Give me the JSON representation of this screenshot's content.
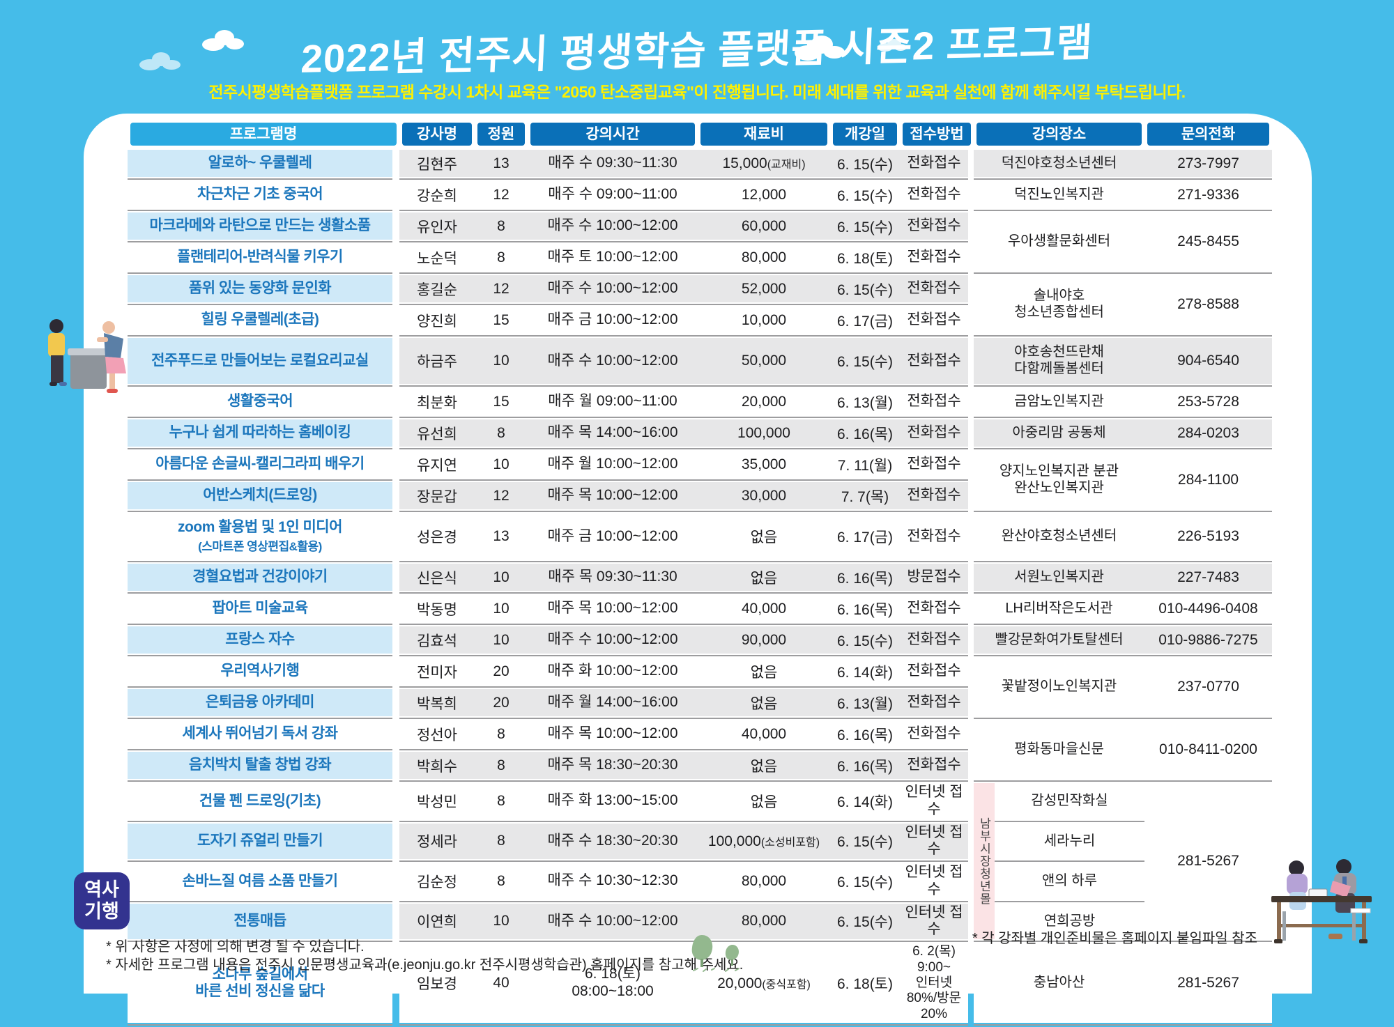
{
  "title": "2022년 전주시 평생학습 플랫폼 시즌2 프로그램",
  "subtitle": "전주시평생학습플랫폼 프로그램 수강시 1차시 교육은 \"2050 탄소중립교육\"이 진행됩니다. 미래 세대를 위한 교육과 실천에 함께 해주시길 부탁드립니다.",
  "badge": {
    "text": "역사\n기행"
  },
  "colors": {
    "background_sky": "#45bce9",
    "panel": "#ffffff",
    "header_blue": "#0a70b8",
    "header_light_blue": "#2aaae1",
    "program_cell_blue": "#cfe9f8",
    "data_cell_gray": "#e7e7e8",
    "program_text_blue": "#1b76bc",
    "market_strip_pink": "#fbe3e5",
    "badge_indigo": "#33338f",
    "subtitle_yellow": "#fff100"
  },
  "footer": {
    "note1": "* 위 사항은 사정에 의해 변경 될 수 있습니다.",
    "note2": "* 자세한 프로그램 내용은 전주시 인문평생교육과(e.jeonju.go.kr 전주시평생학습관) 홈페이지를 참고해 주세요.",
    "note_right": "* 각 강좌별 개인준비물은 홈페이지 붙임파일 참조"
  },
  "table": {
    "headers": [
      "프로그램명",
      "강사명",
      "정원",
      "강의시간",
      "재료비",
      "개강일",
      "접수방법",
      "강의장소",
      "문의전화"
    ],
    "market_label": "남부시장청년몰",
    "rows": [
      {
        "shade": true,
        "name": "알로하~ 우쿨렐레",
        "instructor": "김현주",
        "capacity": "13",
        "time": "매주 수 09:30~11:30",
        "fee": "15,000",
        "fee_note": "(교재비)",
        "date": "6. 15(수)",
        "method": "전화접수",
        "loc": {
          "text": "덕진야호청소년센터",
          "span": 1,
          "cols": true
        },
        "phone": {
          "text": "273-7997",
          "span": 1
        }
      },
      {
        "shade": false,
        "name": "차근차근 기초 중국어",
        "instructor": "강순희",
        "capacity": "12",
        "time": "매주 수 09:00~11:00",
        "fee": "12,000",
        "date": "6. 15(수)",
        "method": "전화접수",
        "loc": {
          "text": "덕진노인복지관",
          "span": 1,
          "cols": true
        },
        "phone": {
          "text": "271-9336",
          "span": 1
        }
      },
      {
        "shade": true,
        "name": "마크라메와 라탄으로 만드는 생활소품",
        "instructor": "유인자",
        "capacity": "8",
        "time": "매주 수 10:00~12:00",
        "fee": "60,000",
        "date": "6. 15(수)",
        "method": "전화접수",
        "loc": {
          "text": "우아생활문화센터",
          "span": 2,
          "cols": true
        },
        "phone": {
          "text": "245-8455",
          "span": 2
        }
      },
      {
        "shade": false,
        "name": "플랜테리어-반려식물 키우기",
        "instructor": "노순덕",
        "capacity": "8",
        "time": "매주 토 10:00~12:00",
        "fee": "80,000",
        "date": "6. 18(토)",
        "method": "전화접수"
      },
      {
        "shade": true,
        "name": "품위 있는 동양화 문인화",
        "instructor": "홍길순",
        "capacity": "12",
        "time": "매주 수 10:00~12:00",
        "fee": "52,000",
        "date": "6. 15(수)",
        "method": "전화접수",
        "loc": {
          "text": "솔내야호\n청소년종합센터",
          "span": 2,
          "cols": true
        },
        "phone": {
          "text": "278-8588",
          "span": 2
        }
      },
      {
        "shade": false,
        "name": "힐링 우쿨렐레(초급)",
        "instructor": "양진희",
        "capacity": "15",
        "time": "매주 금 10:00~12:00",
        "fee": "10,000",
        "date": "6. 17(금)",
        "method": "전화접수"
      },
      {
        "shade": true,
        "cls": "tall",
        "name": "전주푸드로 만들어보는 로컬요리교실",
        "instructor": "하금주",
        "capacity": "10",
        "time": "매주 수 10:00~12:00",
        "fee": "50,000",
        "date": "6. 15(수)",
        "method": "전화접수",
        "loc": {
          "text": "야호송천뜨란채\n다함께돌봄센터",
          "span": 1,
          "cols": true
        },
        "phone": {
          "text": "904-6540",
          "span": 1
        }
      },
      {
        "shade": false,
        "name": "생활중국어",
        "instructor": "최분화",
        "capacity": "15",
        "time": "매주 월 09:00~11:00",
        "fee": "20,000",
        "date": "6. 13(월)",
        "method": "전화접수",
        "loc": {
          "text": "금암노인복지관",
          "span": 1,
          "cols": true
        },
        "phone": {
          "text": "253-5728",
          "span": 1
        }
      },
      {
        "shade": true,
        "name": "누구나 쉽게 따라하는 홈베이킹",
        "instructor": "유선희",
        "capacity": "8",
        "time": "매주 목 14:00~16:00",
        "fee": "100,000",
        "date": "6. 16(목)",
        "method": "전화접수",
        "loc": {
          "text": "아중리맘 공동체",
          "span": 1,
          "cols": true
        },
        "phone": {
          "text": "284-0203",
          "span": 1
        }
      },
      {
        "shade": false,
        "name": "아름다운 손글씨-캘리그라피 배우기",
        "instructor": "유지연",
        "capacity": "10",
        "time": "매주 월 10:00~12:00",
        "fee": "35,000",
        "date": "7. 11(월)",
        "method": "전화접수",
        "loc": {
          "text": "양지노인복지관 분관\n완산노인복지관",
          "span": 2,
          "cols": true
        },
        "phone": {
          "text": "284-1100",
          "span": 2
        }
      },
      {
        "shade": true,
        "name": "어반스케치(드로잉)",
        "instructor": "장문갑",
        "capacity": "12",
        "time": "매주 목 10:00~12:00",
        "fee": "30,000",
        "date": "7. 7(목)",
        "method": "전화접수"
      },
      {
        "shade": false,
        "cls": "tall",
        "name": "zoom 활용법 및 1인 미디어",
        "name_sub": "(스마트폰 영상편집&활용)",
        "instructor": "성은경",
        "capacity": "13",
        "time": "매주 금 10:00~12:00",
        "fee": "없음",
        "date": "6. 17(금)",
        "method": "전화접수",
        "loc": {
          "text": "완산야호청소년센터",
          "span": 1,
          "cols": true
        },
        "phone": {
          "text": "226-5193",
          "span": 1
        }
      },
      {
        "shade": true,
        "name": "경혈요법과 건강이야기",
        "instructor": "신은식",
        "capacity": "10",
        "time": "매주 목 09:30~11:30",
        "fee": "없음",
        "date": "6. 16(목)",
        "method": "방문접수",
        "loc": {
          "text": "서원노인복지관",
          "span": 1,
          "cols": true
        },
        "phone": {
          "text": "227-7483",
          "span": 1
        }
      },
      {
        "shade": false,
        "name": "팝아트 미술교육",
        "instructor": "박동명",
        "capacity": "10",
        "time": "매주 목 10:00~12:00",
        "fee": "40,000",
        "date": "6. 16(목)",
        "method": "전화접수",
        "loc": {
          "text": "LH리버작은도서관",
          "span": 1,
          "cols": true
        },
        "phone": {
          "text": "010-4496-0408",
          "span": 1
        }
      },
      {
        "shade": true,
        "name": "프랑스 자수",
        "instructor": "김효석",
        "capacity": "10",
        "time": "매주 수 10:00~12:00",
        "fee": "90,000",
        "date": "6. 15(수)",
        "method": "전화접수",
        "loc": {
          "text": "빨강문화여가토탈센터",
          "span": 1,
          "cols": true
        },
        "phone": {
          "text": "010-9886-7275",
          "span": 1
        }
      },
      {
        "shade": false,
        "name": "우리역사기행",
        "instructor": "전미자",
        "capacity": "20",
        "time": "매주 화 10:00~12:00",
        "fee": "없음",
        "date": "6. 14(화)",
        "method": "전화접수",
        "loc": {
          "text": "꽃밭정이노인복지관",
          "span": 2,
          "cols": true
        },
        "phone": {
          "text": "237-0770",
          "span": 2
        }
      },
      {
        "shade": true,
        "name": "은퇴금융 아카데미",
        "instructor": "박복희",
        "capacity": "20",
        "time": "매주 월 14:00~16:00",
        "fee": "없음",
        "date": "6. 13(월)",
        "method": "전화접수"
      },
      {
        "shade": false,
        "name": "세계사 뛰어넘기 독서 강좌",
        "instructor": "정선아",
        "capacity": "8",
        "time": "매주 목 10:00~12:00",
        "fee": "40,000",
        "date": "6. 16(목)",
        "method": "전화접수",
        "loc": {
          "text": "평화동마을신문",
          "span": 2,
          "cols": true
        },
        "phone": {
          "text": "010-8411-0200",
          "span": 2
        }
      },
      {
        "shade": true,
        "name": "음치박치 탈출 창법 강좌",
        "instructor": "박희수",
        "capacity": "8",
        "time": "매주 목 18:30~20:30",
        "fee": "없음",
        "date": "6. 16(목)",
        "method": "전화접수"
      },
      {
        "shade": false,
        "strip": true,
        "name": "건물 펜 드로잉(기초)",
        "instructor": "박성민",
        "capacity": "8",
        "time": "매주 화 13:00~15:00",
        "fee": "없음",
        "date": "6. 14(화)",
        "method": "인터넷 접수",
        "loc": {
          "text": "감성민작화실",
          "span": 1,
          "white": true
        },
        "phone": {
          "text": "281-5267",
          "span": 4
        }
      },
      {
        "shade": true,
        "name": "도자기 쥬얼리 만들기",
        "instructor": "정세라",
        "capacity": "8",
        "time": "매주 수 18:30~20:30",
        "fee": "100,000",
        "fee_note": "(소성비포함)",
        "date": "6. 15(수)",
        "method": "인터넷 접수",
        "loc": {
          "text": "세라누리",
          "span": 1,
          "white": true
        }
      },
      {
        "shade": false,
        "name": "손바느질 여름 소품 만들기",
        "instructor": "김순정",
        "capacity": "8",
        "time": "매주 수 10:30~12:30",
        "fee": "80,000",
        "date": "6. 15(수)",
        "method": "인터넷 접수",
        "loc": {
          "text": "앤의 하루",
          "span": 1,
          "white": true
        }
      },
      {
        "shade": true,
        "name": "전통매듭",
        "instructor": "이연희",
        "capacity": "10",
        "time": "매주 수 10:00~12:00",
        "fee": "80,000",
        "date": "6. 15(수)",
        "method": "인터넷 접수",
        "loc": {
          "text": "연희공방",
          "span": 1,
          "white": true
        }
      },
      {
        "shade": false,
        "cls": "last",
        "name": "소나무 숲길에서\n바른 선비 정신을 닮다",
        "instructor": "임보경",
        "capacity": "40",
        "time": "6. 18(토)\n08:00~18:00",
        "fee": "20,000",
        "fee_note": "(중식포함)",
        "date": "6. 18(토)",
        "method": "6. 2(목) 9:00~\n인터넷 80%/방문 20%",
        "loc": {
          "text": "충남아산",
          "span": 1,
          "cols": true
        },
        "phone": {
          "text": "281-5267",
          "span": 1
        }
      }
    ]
  }
}
